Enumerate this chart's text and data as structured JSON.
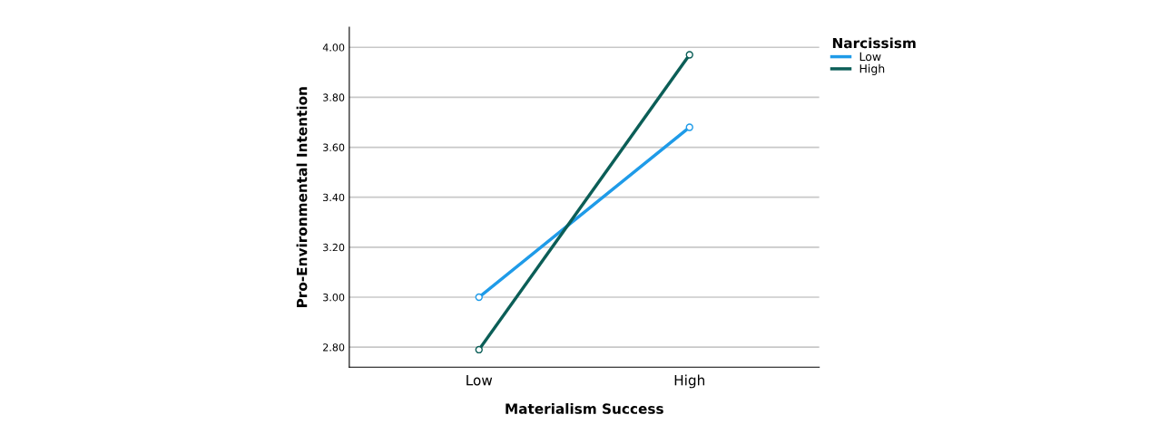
{
  "chart_data": {
    "type": "line",
    "xlabel": "Materialism Success",
    "ylabel": "Pro-Environmental Intention",
    "legend_title": "Narcissism",
    "categories": [
      "Low",
      "High"
    ],
    "series": [
      {
        "name": "Low",
        "color": "#1f9be8",
        "values": [
          3.0,
          3.68
        ]
      },
      {
        "name": "High",
        "color": "#0b5e57",
        "values": [
          2.79,
          3.97
        ]
      }
    ],
    "ylim": [
      2.72,
      4.08
    ],
    "yticks": [
      {
        "value": 2.8,
        "label": "2.80"
      },
      {
        "value": 3.0,
        "label": "3.00"
      },
      {
        "value": 3.2,
        "label": "3.20"
      },
      {
        "value": 3.4,
        "label": "3.40"
      },
      {
        "value": 3.6,
        "label": "3.60"
      },
      {
        "value": 3.8,
        "label": "3.80"
      },
      {
        "value": 4.0,
        "label": "4.00"
      }
    ],
    "grid": "y",
    "legend": "top right",
    "marker": "circle",
    "line_style": "solid"
  }
}
